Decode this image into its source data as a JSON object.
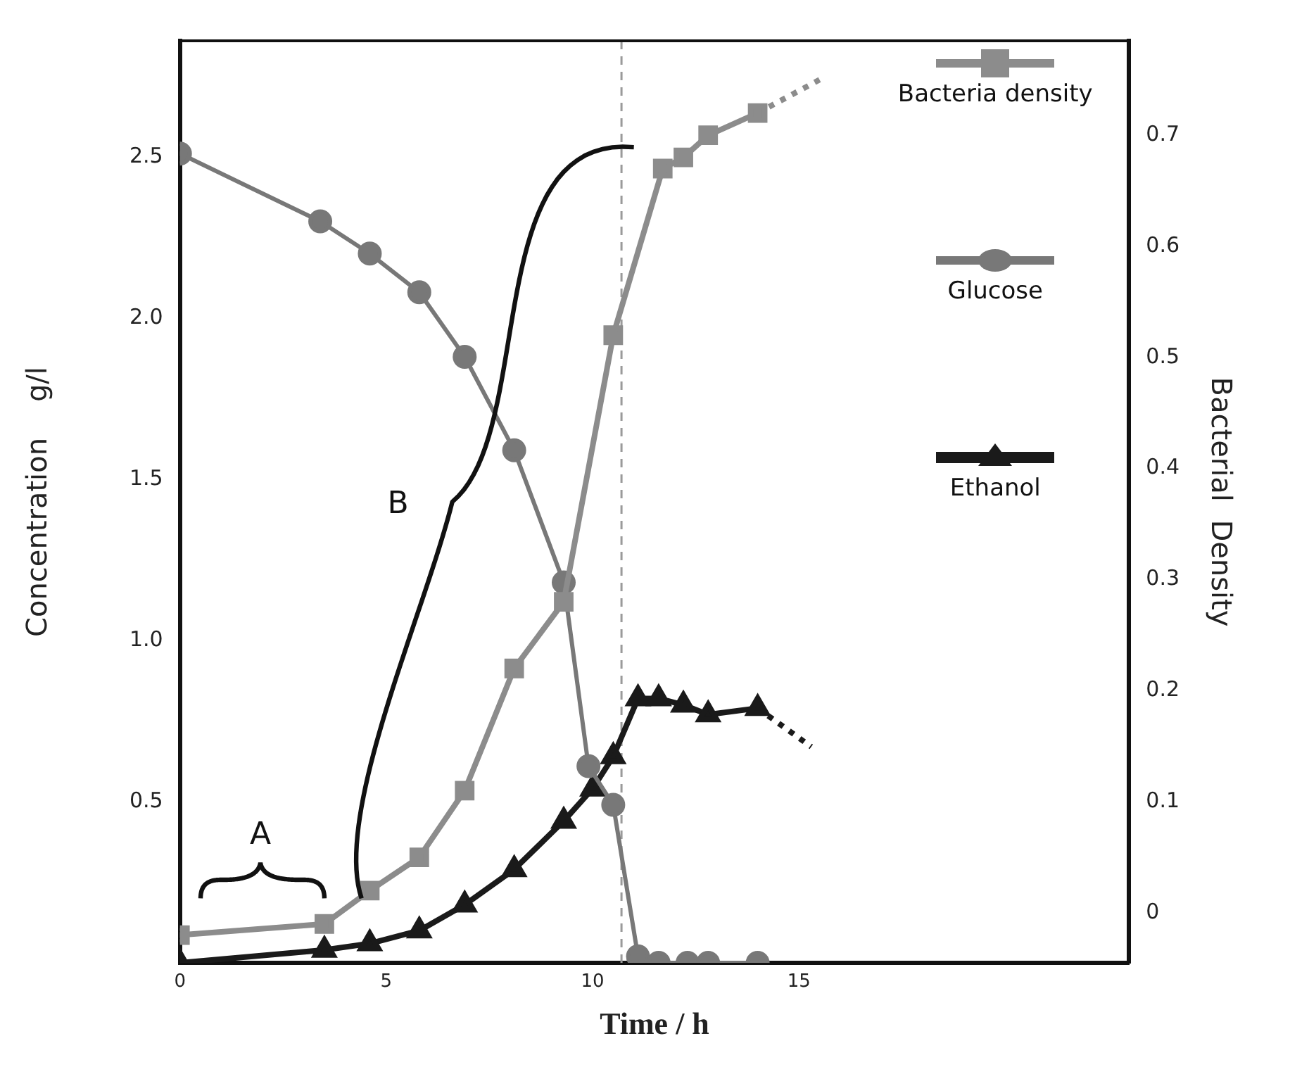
{
  "chart_data": {
    "type": "line",
    "xlabel": "Time / h",
    "ylabel": "Concentration    g/l",
    "y2label": "Bacterial  Density",
    "xlim": [
      0,
      23
    ],
    "xticks": [
      0,
      5,
      10,
      15
    ],
    "ylim": [
      0,
      2.86
    ],
    "yticks": [
      {
        "value": 0.5,
        "label": "0.5"
      },
      {
        "value": 1,
        "label": "1.0"
      },
      {
        "value": 1.5,
        "label": "1.5"
      },
      {
        "value": 2,
        "label": "2.0"
      },
      {
        "value": 2.5,
        "label": "2.5"
      }
    ],
    "y2lim": [
      -0.045,
      0.785
    ],
    "y2ticks": [
      0,
      0.1,
      0.2,
      0.3,
      0.4,
      0.5,
      0.6,
      0.7
    ],
    "grid": false,
    "legend": "right",
    "series": [
      {
        "name": "Bacteria density",
        "color": "#8c8c8c",
        "axis": "y2",
        "marker": "square",
        "x": [
          0,
          3.5,
          4.6,
          5.8,
          6.9,
          8.1,
          9.3,
          10.5,
          11.7,
          12.2,
          12.8,
          14.0
        ],
        "values": [
          -0.02,
          -0.01,
          0.02,
          0.05,
          0.11,
          0.22,
          0.28,
          0.52,
          0.67,
          0.68,
          0.7,
          0.72
        ]
      },
      {
        "name": "Glucose",
        "color": "#787878",
        "marker": "circle",
        "x": [
          0,
          3.4,
          4.6,
          5.8,
          6.9,
          8.1,
          9.3,
          9.9,
          10.5,
          11.1,
          11.6,
          12.3,
          12.8,
          14.0
        ],
        "values": [
          2.51,
          2.3,
          2.2,
          2.08,
          1.88,
          1.59,
          1.18,
          0.61,
          0.49,
          0.02,
          0,
          0,
          0,
          0
        ]
      },
      {
        "name": "Ethanol",
        "color": "#1a1a1a",
        "marker": "triangle",
        "x": [
          0,
          3.5,
          4.6,
          5.8,
          6.9,
          8.1,
          9.3,
          10.0,
          10.5,
          11.1,
          11.6,
          12.2,
          12.8,
          14.0
        ],
        "values": [
          0,
          0.04,
          0.06,
          0.1,
          0.18,
          0.29,
          0.44,
          0.54,
          0.64,
          0.82,
          0.82,
          0.8,
          0.77,
          0.79
        ]
      },
      {
        "color": "#8c8c8c",
        "axis": "y2",
        "marker": "none",
        "line_style": "dotted",
        "x": [
          14.0,
          15.5
        ],
        "values": [
          0.72,
          0.75
        ]
      },
      {
        "color": "#1a1a1a",
        "marker": "none",
        "line_style": "dotted",
        "x": [
          14.0,
          15.3
        ],
        "values": [
          0.79,
          0.67
        ]
      }
    ],
    "ref_lines": [
      {
        "axis": "x",
        "value": 10.7,
        "color": "#9a9a9a",
        "line_style": "dashed"
      }
    ],
    "annotations": [
      "A",
      "B"
    ]
  }
}
